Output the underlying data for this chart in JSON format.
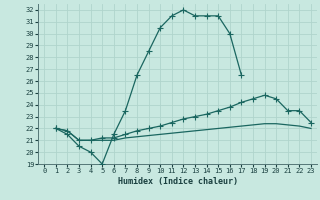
{
  "xlabel": "Humidex (Indice chaleur)",
  "bg_color": "#c8e8e0",
  "grid_color": "#b0d4cc",
  "line_color": "#1a6660",
  "xlim": [
    -0.5,
    23.5
  ],
  "ylim": [
    19,
    32.5
  ],
  "xticks": [
    0,
    1,
    2,
    3,
    4,
    5,
    6,
    7,
    8,
    9,
    10,
    11,
    12,
    13,
    14,
    15,
    16,
    17,
    18,
    19,
    20,
    21,
    22,
    23
  ],
  "yticks": [
    19,
    20,
    21,
    22,
    23,
    24,
    25,
    26,
    27,
    28,
    29,
    30,
    31,
    32
  ],
  "curve1_x": [
    1,
    2,
    3,
    4,
    5,
    6,
    7,
    8,
    9,
    10,
    11,
    12,
    13,
    14,
    15,
    16,
    17
  ],
  "curve1_y": [
    22.0,
    21.5,
    20.5,
    20.0,
    19.0,
    21.5,
    23.5,
    26.5,
    28.5,
    30.5,
    31.5,
    32.0,
    31.5,
    31.5,
    31.5,
    30.0,
    26.5
  ],
  "curve2_x": [
    1,
    2,
    3,
    4,
    5,
    6,
    7,
    8,
    9,
    10,
    11,
    12,
    13,
    14,
    15,
    16,
    17,
    18,
    19,
    20,
    21,
    22,
    23
  ],
  "curve2_y": [
    22.0,
    21.8,
    21.0,
    21.0,
    21.2,
    21.2,
    21.5,
    21.8,
    22.0,
    22.2,
    22.5,
    22.8,
    23.0,
    23.2,
    23.5,
    23.8,
    24.2,
    24.5,
    24.8,
    24.5,
    23.5,
    23.5,
    22.5
  ],
  "curve3_x": [
    1,
    2,
    3,
    4,
    5,
    6,
    7,
    8,
    9,
    10,
    11,
    12,
    13,
    14,
    15,
    16,
    17,
    18,
    19,
    20,
    21,
    22,
    23
  ],
  "curve3_y": [
    22.0,
    21.8,
    21.0,
    21.0,
    21.0,
    21.0,
    21.2,
    21.3,
    21.4,
    21.5,
    21.6,
    21.7,
    21.8,
    21.9,
    22.0,
    22.1,
    22.2,
    22.3,
    22.4,
    22.4,
    22.3,
    22.2,
    22.0
  ]
}
